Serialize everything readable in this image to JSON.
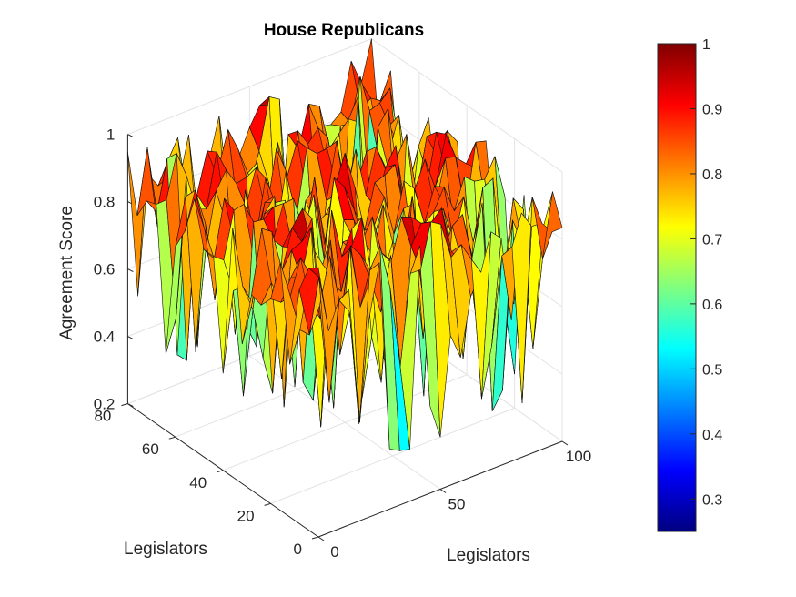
{
  "chart_data": {
    "type": "surface3d",
    "title": "House Republicans",
    "xlabel": "Legislators",
    "ylabel": "Legislators",
    "zlabel": "Agreement Score",
    "xlim": [
      0,
      100
    ],
    "ylim": [
      0,
      80
    ],
    "zlim": [
      0.2,
      1
    ],
    "xticks": [
      "0",
      "50",
      "100"
    ],
    "yticks": [
      "0",
      "20",
      "40",
      "60",
      "80"
    ],
    "zticks": [
      "0.2",
      "0.4",
      "0.6",
      "0.8",
      "1"
    ],
    "grid": true,
    "grid_size": [
      24,
      20
    ],
    "colormap": "jet",
    "colorbar": {
      "range": [
        0.25,
        1
      ],
      "ticks": [
        "0.3",
        "0.4",
        "0.5",
        "0.6",
        "0.7",
        "0.8",
        "0.9",
        "1"
      ],
      "placement": "right"
    },
    "value_summary": {
      "min": 0.25,
      "max": 1.0,
      "typical": 0.8
    }
  }
}
